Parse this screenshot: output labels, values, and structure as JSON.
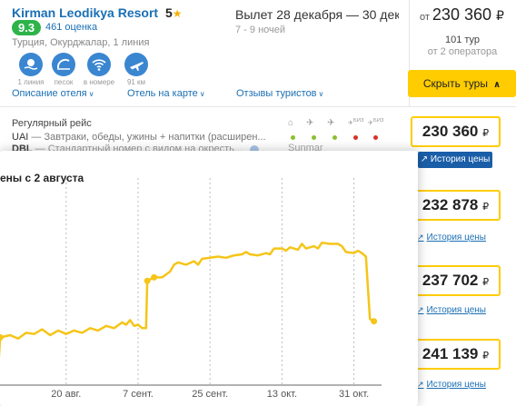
{
  "hotel": {
    "name": "Kirman Leodikya Resort",
    "stars": "5",
    "rating": "9.3",
    "reviews": "461 оценка",
    "location": "Турция, Окурджалар, 1 линия",
    "amenities": [
      {
        "icon": "beach-line-icon",
        "caption": "1 линия"
      },
      {
        "icon": "sand-icon",
        "caption": "песок"
      },
      {
        "icon": "wifi-icon",
        "caption": "в номере"
      },
      {
        "icon": "airport-icon",
        "caption": "91 км"
      }
    ],
    "links": [
      "Описание отеля",
      "Отель на карте",
      "Отзывы туристов"
    ]
  },
  "trip": {
    "dates": "Вылет 28 декабря — 30 дек...",
    "nights": "7 - 9 ночей"
  },
  "summary": {
    "from_label": "от",
    "price": "230 360",
    "currency": "₽",
    "tours": "101 тур",
    "operators": "от 2 оператора",
    "hide_button": "Скрыть туры"
  },
  "tour_row": {
    "flight_type": "Регулярный рейс",
    "meal_code": "UAI",
    "meal_text": " — Завтраки, обеды, ужины + напитки (расширен...",
    "room_code": "DBL",
    "room_text": " — Стандартный номер с видом на окресть...",
    "operator": "Sunmar",
    "biz_label": "БИЗ",
    "dot_colors": [
      "#8bbf2e",
      "#8bbf2e",
      "#8bbf2e",
      "#d9302c",
      "#d9302c"
    ]
  },
  "prices": [
    {
      "value": "230 360",
      "currency": "₽",
      "history": "История цены"
    },
    {
      "value": "232 878",
      "currency": "₽",
      "history": "История цены"
    },
    {
      "value": "237 702",
      "currency": "₽",
      "history": "История цены"
    },
    {
      "value": "241 139",
      "currency": "₽",
      "history": "История цены"
    }
  ],
  "popup": {
    "title": "ены с 2 августа"
  },
  "chart_data": {
    "type": "line",
    "title": "ены с 2 августа",
    "x_ticks": [
      "20 авг.",
      "7 сент.",
      "25 сент.",
      "13 окт.",
      "31 окт."
    ],
    "x_domain_days": [
      0,
      95
    ],
    "tick_days": [
      17,
      35,
      53,
      71,
      89
    ],
    "ylim": [
      228000,
      242000
    ],
    "color": "#f5c518",
    "points": [
      [
        0,
        228800
      ],
      [
        0.5,
        231500
      ],
      [
        3,
        231700
      ],
      [
        5,
        231400
      ],
      [
        7,
        231900
      ],
      [
        9,
        231800
      ],
      [
        11,
        232200
      ],
      [
        13,
        231700
      ],
      [
        15,
        232100
      ],
      [
        17,
        231800
      ],
      [
        19,
        232100
      ],
      [
        21,
        231900
      ],
      [
        23,
        232300
      ],
      [
        25,
        232100
      ],
      [
        27,
        232500
      ],
      [
        29,
        232300
      ],
      [
        31,
        232800
      ],
      [
        32,
        232600
      ],
      [
        33,
        233000
      ],
      [
        34,
        232500
      ],
      [
        35,
        232600
      ],
      [
        36,
        232300
      ],
      [
        37,
        232300
      ],
      [
        37.3,
        236400
      ],
      [
        39,
        236700
      ],
      [
        41,
        236700
      ],
      [
        43,
        237200
      ],
      [
        44,
        237800
      ],
      [
        45,
        238000
      ],
      [
        47,
        237800
      ],
      [
        49,
        238100
      ],
      [
        50,
        237800
      ],
      [
        51,
        238300
      ],
      [
        53,
        238400
      ],
      [
        55,
        238500
      ],
      [
        57,
        238400
      ],
      [
        59,
        238600
      ],
      [
        61,
        238700
      ],
      [
        62,
        238900
      ],
      [
        63,
        238700
      ],
      [
        65,
        238600
      ],
      [
        67,
        238800
      ],
      [
        68,
        238700
      ],
      [
        69,
        239200
      ],
      [
        71,
        239200
      ],
      [
        72,
        239000
      ],
      [
        73,
        239300
      ],
      [
        75,
        239100
      ],
      [
        76,
        239600
      ],
      [
        77,
        239200
      ],
      [
        79,
        239400
      ],
      [
        80,
        239200
      ],
      [
        81,
        239700
      ],
      [
        83,
        239600
      ],
      [
        85,
        239600
      ],
      [
        86,
        239400
      ],
      [
        87,
        238900
      ],
      [
        89,
        238800
      ],
      [
        90,
        239000
      ],
      [
        91,
        238800
      ],
      [
        92,
        238500
      ],
      [
        93,
        233100
      ],
      [
        94,
        232900
      ]
    ]
  }
}
